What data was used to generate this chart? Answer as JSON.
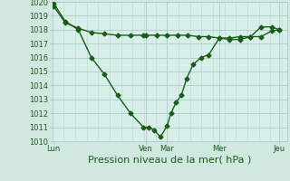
{
  "background_color": "#d0e8e0",
  "plot_bg_color": "#d8eee8",
  "grid_color": "#b0ccc8",
  "line_color": "#1a5c1a",
  "xlabel": "Pression niveau de la mer( hPa )",
  "ylim": [
    1010,
    1020
  ],
  "xlim": [
    0,
    9
  ],
  "yticks": [
    1010,
    1011,
    1012,
    1013,
    1014,
    1015,
    1016,
    1017,
    1018,
    1019,
    1020
  ],
  "xtick_positions": [
    0.05,
    3.6,
    4.4,
    6.4,
    8.7
  ],
  "xtick_labels": [
    "Lun",
    "Ven",
    "Mar",
    "Mer",
    "Jeu"
  ],
  "vline_positions": [
    3.6,
    4.4,
    6.4,
    8.7
  ],
  "line1_x": [
    0.05,
    0.5,
    1.0,
    1.5,
    2.0,
    2.5,
    3.0,
    3.5,
    3.6,
    4.0,
    4.4,
    4.8,
    5.2,
    5.6,
    6.0,
    6.4,
    6.8,
    7.2,
    7.6,
    8.0,
    8.4,
    8.7
  ],
  "line1_y": [
    1019.7,
    1018.5,
    1018.1,
    1017.8,
    1017.7,
    1017.6,
    1017.6,
    1017.6,
    1017.6,
    1017.6,
    1017.6,
    1017.6,
    1017.6,
    1017.5,
    1017.5,
    1017.4,
    1017.4,
    1017.5,
    1017.5,
    1017.5,
    1017.9,
    1018.0
  ],
  "line2_x": [
    0.05,
    0.5,
    1.0,
    1.5,
    2.0,
    2.5,
    3.0,
    3.5,
    3.7,
    3.9,
    4.15,
    4.4,
    4.55,
    4.75,
    4.95,
    5.15,
    5.4,
    5.7,
    6.0,
    6.4,
    6.8,
    7.2,
    7.6,
    8.0,
    8.4,
    8.7
  ],
  "line2_y": [
    1019.9,
    1018.6,
    1018.0,
    1016.0,
    1014.8,
    1013.3,
    1012.0,
    1011.0,
    1011.0,
    1010.8,
    1010.3,
    1011.1,
    1012.0,
    1012.8,
    1013.3,
    1014.5,
    1015.5,
    1016.0,
    1016.2,
    1017.4,
    1017.3,
    1017.3,
    1017.5,
    1018.2,
    1018.2,
    1018.0
  ],
  "marker_size": 2.5,
  "linewidth": 1.0,
  "tick_fontsize": 6,
  "xlabel_fontsize": 8
}
